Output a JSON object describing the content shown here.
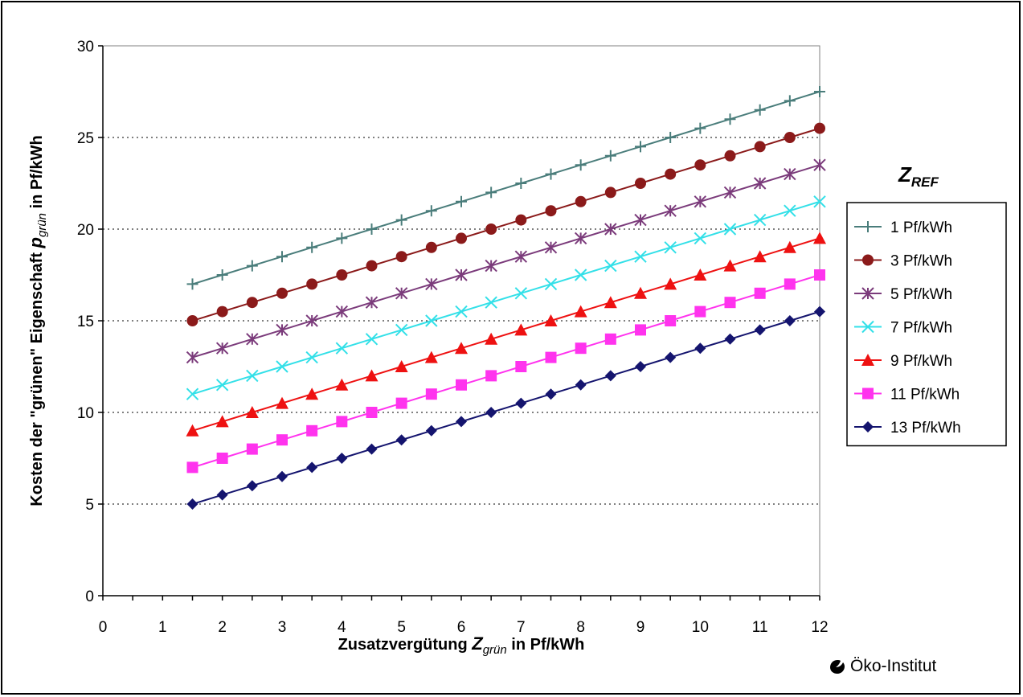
{
  "chart_data": {
    "type": "line",
    "xlabel": {
      "prefix": "Zusatzvergütung ",
      "var": "Z",
      "sub": "grün",
      "suffix": " in Pf/kWh"
    },
    "ylabel": {
      "prefix": "Kosten der \"grünen\" Eigenschaft ",
      "var": "p",
      "sub": "grün",
      "suffix": " in Pf/kWh"
    },
    "xlim": [
      0,
      12
    ],
    "ylim": [
      0,
      30
    ],
    "x_ticks": [
      0,
      1,
      2,
      3,
      4,
      5,
      6,
      7,
      8,
      9,
      10,
      11,
      12
    ],
    "y_ticks": [
      0,
      5,
      10,
      15,
      20,
      25,
      30
    ],
    "grid": "horizontal dotted",
    "legend": {
      "title_var": "Z",
      "title_sub": "REF",
      "placement": "right"
    },
    "x": [
      1.5,
      2,
      2.5,
      3,
      3.5,
      4,
      4.5,
      5,
      5.5,
      6,
      6.5,
      7,
      7.5,
      8,
      8.5,
      9,
      9.5,
      10,
      10.5,
      11,
      11.5,
      12
    ],
    "series": [
      {
        "name": "1 Pf/kWh",
        "color": "#4a7d7b",
        "marker": "plus",
        "values": [
          17,
          17.5,
          18,
          18.5,
          19,
          19.5,
          20,
          20.5,
          21,
          21.5,
          22,
          22.5,
          23,
          23.5,
          24,
          24.5,
          25,
          25.5,
          26,
          26.5,
          27,
          27.5
        ]
      },
      {
        "name": "3 Pf/kWh",
        "color": "#8b1a1a",
        "marker": "circle",
        "values": [
          15,
          15.5,
          16,
          16.5,
          17,
          17.5,
          18,
          18.5,
          19,
          19.5,
          20,
          20.5,
          21,
          21.5,
          22,
          22.5,
          23,
          23.5,
          24,
          24.5,
          25,
          25.5
        ]
      },
      {
        "name": "5 Pf/kWh",
        "color": "#7b3b7b",
        "marker": "asterisk",
        "values": [
          13,
          13.5,
          14,
          14.5,
          15,
          15.5,
          16,
          16.5,
          17,
          17.5,
          18,
          18.5,
          19,
          19.5,
          20,
          20.5,
          21,
          21.5,
          22,
          22.5,
          23,
          23.5
        ]
      },
      {
        "name": "7 Pf/kWh",
        "color": "#33e0e8",
        "marker": "x",
        "values": [
          11,
          11.5,
          12,
          12.5,
          13,
          13.5,
          14,
          14.5,
          15,
          15.5,
          16,
          16.5,
          17,
          17.5,
          18,
          18.5,
          19,
          19.5,
          20,
          20.5,
          21,
          21.5
        ]
      },
      {
        "name": "9 Pf/kWh",
        "color": "#ee1111",
        "marker": "triangle",
        "values": [
          9,
          9.5,
          10,
          10.5,
          11,
          11.5,
          12,
          12.5,
          13,
          13.5,
          14,
          14.5,
          15,
          15.5,
          16,
          16.5,
          17,
          17.5,
          18,
          18.5,
          19,
          19.5
        ]
      },
      {
        "name": "11 Pf/kWh",
        "color": "#ff33ee",
        "marker": "square",
        "values": [
          7,
          7.5,
          8,
          8.5,
          9,
          9.5,
          10,
          10.5,
          11,
          11.5,
          12,
          12.5,
          13,
          13.5,
          14,
          14.5,
          15,
          15.5,
          16,
          16.5,
          17,
          17.5
        ]
      },
      {
        "name": "13 Pf/kWh",
        "color": "#14146e",
        "marker": "diamond",
        "values": [
          5,
          5.5,
          6,
          6.5,
          7,
          7.5,
          8,
          8.5,
          9,
          9.5,
          10,
          10.5,
          11,
          11.5,
          12,
          12.5,
          13,
          13.5,
          14,
          14.5,
          15,
          15.5
        ]
      }
    ]
  },
  "logo": {
    "text": "Öko-Institut",
    "icon": "leaf-icon"
  }
}
